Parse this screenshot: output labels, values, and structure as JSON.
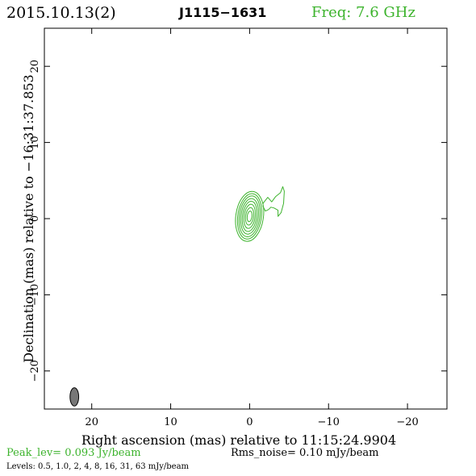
{
  "header": {
    "date": "2015.10.13(2)",
    "source": "J1115−1631",
    "freq_label": "Freq: 7.6 GHz"
  },
  "footer": {
    "peak": "Peak_lev=  0.093 Jy/beam",
    "rms": "Rms_noise= 0.10 mJy/beam",
    "levels": "Levels: 0.5, 1.0,   2,   4,   8,  16,  31,  63 mJy/beam"
  },
  "colors": {
    "contour": "#3cb32c",
    "beam": "#777777",
    "text": "#000000"
  },
  "chart_data": {
    "type": "contour",
    "xlabel": "Right ascension (mas) relative to 11:15:24.9904",
    "ylabel": "Declination (mas) relative to −16:31:37.853",
    "xlim": [
      26,
      -25
    ],
    "ylim": [
      -25,
      25
    ],
    "xticks": [
      20,
      10,
      0,
      -10,
      -20
    ],
    "xtick_labels": [
      "20",
      "10",
      "0",
      "−10",
      "−20"
    ],
    "yticks": [
      20,
      10,
      0,
      -10,
      -20
    ],
    "ytick_labels": [
      "20",
      "10",
      "0",
      "−10",
      "−20"
    ],
    "contour_levels_mJy_per_beam": [
      0.5,
      1.0,
      2,
      4,
      8,
      16,
      31,
      63
    ],
    "core": {
      "x": 0.0,
      "y": 0.3
    },
    "core_contours": [
      {
        "level": 0.5,
        "dx": 1.75,
        "dy": 3.3,
        "angle": 8
      },
      {
        "level": 1.0,
        "dx": 1.5,
        "dy": 3.0,
        "angle": 8
      },
      {
        "level": 2,
        "dx": 1.3,
        "dy": 2.7,
        "angle": 8
      },
      {
        "level": 4,
        "dx": 1.1,
        "dy": 2.35,
        "angle": 8
      },
      {
        "level": 8,
        "dx": 0.9,
        "dy": 2.0,
        "angle": 8
      },
      {
        "level": 16,
        "dx": 0.7,
        "dy": 1.6,
        "angle": 8
      },
      {
        "level": 31,
        "dx": 0.5,
        "dy": 1.15,
        "angle": 8
      },
      {
        "level": 63,
        "dx": 0.3,
        "dy": 0.7,
        "angle": 8
      }
    ],
    "jet_contour": [
      [
        -1.7,
        2.0
      ],
      [
        -2.3,
        2.8
      ],
      [
        -2.8,
        2.2
      ],
      [
        -3.3,
        2.9
      ],
      [
        -3.9,
        3.4
      ],
      [
        -4.2,
        4.2
      ],
      [
        -4.4,
        3.6
      ],
      [
        -4.3,
        2.0
      ],
      [
        -4.0,
        0.8
      ],
      [
        -3.6,
        0.3
      ],
      [
        -3.6,
        1.1
      ],
      [
        -3.1,
        1.4
      ],
      [
        -2.7,
        1.5
      ],
      [
        -2.4,
        1.2
      ],
      [
        -2.0,
        1.0
      ],
      [
        -1.7,
        1.6
      ]
    ],
    "beam": {
      "x": 22.2,
      "y": -23.4,
      "major_mas": 2.4,
      "minor_mas": 1.1,
      "pa_deg": 0
    }
  }
}
